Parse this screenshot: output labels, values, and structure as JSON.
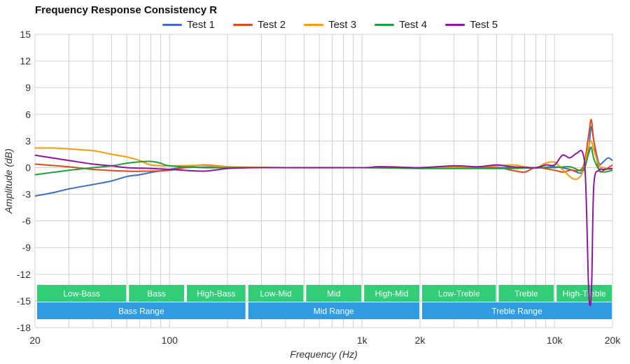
{
  "chart_data": {
    "type": "line",
    "title": "Frequency Response Consistency R",
    "xlabel": "Frequency (Hz)",
    "ylabel": "Amplitude (dB)",
    "xscale": "log",
    "xlim": [
      20,
      20000
    ],
    "ylim": [
      -18,
      15
    ],
    "grid": true,
    "legend_position": "top-center",
    "x_ticks": [
      {
        "value": 20,
        "label": "20"
      },
      {
        "value": 100,
        "label": "100"
      },
      {
        "value": 1000,
        "label": "1k"
      },
      {
        "value": 2000,
        "label": "2k"
      },
      {
        "value": 10000,
        "label": "10k"
      },
      {
        "value": 20000,
        "label": "20k"
      }
    ],
    "y_ticks": [
      {
        "value": 15,
        "label": "15"
      },
      {
        "value": 12,
        "label": "12"
      },
      {
        "value": 9,
        "label": "9"
      },
      {
        "value": 6,
        "label": "6"
      },
      {
        "value": 3,
        "label": "3"
      },
      {
        "value": 0,
        "label": "0"
      },
      {
        "value": -3,
        "label": "-3"
      },
      {
        "value": -6,
        "label": "-6"
      },
      {
        "value": -9,
        "label": "-9"
      },
      {
        "value": -12,
        "label": "-12"
      },
      {
        "value": -15,
        "label": "-15"
      },
      {
        "value": -18,
        "label": "-18"
      }
    ],
    "bands_upper": [
      {
        "label": "Low-Bass",
        "from": 20,
        "to": 60
      },
      {
        "label": "Bass",
        "from": 60,
        "to": 120
      },
      {
        "label": "High-Bass",
        "from": 120,
        "to": 250
      },
      {
        "label": "Low-Mid",
        "from": 250,
        "to": 500
      },
      {
        "label": "Mid",
        "from": 500,
        "to": 1000
      },
      {
        "label": "High-Mid",
        "from": 1000,
        "to": 2000
      },
      {
        "label": "Low-Treble",
        "from": 2000,
        "to": 5000
      },
      {
        "label": "Treble",
        "from": 5000,
        "to": 10000
      },
      {
        "label": "High-Treble",
        "from": 10000,
        "to": 20000
      }
    ],
    "bands_lower": [
      {
        "label": "Bass Range",
        "from": 20,
        "to": 250
      },
      {
        "label": "Mid Range",
        "from": 250,
        "to": 2000
      },
      {
        "label": "Treble Range",
        "from": 2000,
        "to": 20000
      }
    ],
    "band_colors": {
      "upper": "#33cc77",
      "lower": "#2e9be3"
    },
    "series": [
      {
        "name": "Test 1",
        "color": "#3e6ec7",
        "points": [
          [
            20,
            -3.2
          ],
          [
            25,
            -2.8
          ],
          [
            30,
            -2.4
          ],
          [
            40,
            -1.9
          ],
          [
            50,
            -1.5
          ],
          [
            60,
            -1.0
          ],
          [
            70,
            -0.8
          ],
          [
            80,
            -0.55
          ],
          [
            100,
            -0.2
          ],
          [
            120,
            0
          ],
          [
            200,
            0.05
          ],
          [
            400,
            0
          ],
          [
            1000,
            0
          ],
          [
            2000,
            -0.05
          ],
          [
            4000,
            0
          ],
          [
            6000,
            0
          ],
          [
            8000,
            -0.05
          ],
          [
            10000,
            0.1
          ],
          [
            12000,
            -0.2
          ],
          [
            14000,
            -0.5
          ],
          [
            15000,
            2.0
          ],
          [
            15500,
            4.6
          ],
          [
            16000,
            3.0
          ],
          [
            17000,
            0.5
          ],
          [
            18000,
            0.7
          ],
          [
            19000,
            1.1
          ],
          [
            20000,
            0.8
          ]
        ]
      },
      {
        "name": "Test 2",
        "color": "#dd4b1c",
        "points": [
          [
            20,
            0.4
          ],
          [
            30,
            0.1
          ],
          [
            40,
            -0.2
          ],
          [
            60,
            -0.4
          ],
          [
            80,
            -0.4
          ],
          [
            100,
            -0.3
          ],
          [
            120,
            0
          ],
          [
            150,
            0.3
          ],
          [
            200,
            0.1
          ],
          [
            300,
            0
          ],
          [
            1000,
            0
          ],
          [
            1200,
            0.1
          ],
          [
            1400,
            0.1
          ],
          [
            2000,
            0
          ],
          [
            3000,
            0.1
          ],
          [
            5000,
            0
          ],
          [
            6000,
            -0.3
          ],
          [
            7000,
            -0.5
          ],
          [
            8000,
            0
          ],
          [
            10000,
            -0.3
          ],
          [
            11000,
            -0.5
          ],
          [
            12000,
            -0.3
          ],
          [
            14000,
            0
          ],
          [
            15000,
            3.5
          ],
          [
            15500,
            5.4
          ],
          [
            16000,
            3.0
          ],
          [
            17000,
            -0.2
          ],
          [
            18000,
            -0.3
          ],
          [
            20000,
            0.3
          ]
        ]
      },
      {
        "name": "Test 3",
        "color": "#f59e0b",
        "points": [
          [
            20,
            2.2
          ],
          [
            25,
            2.2
          ],
          [
            30,
            2.1
          ],
          [
            40,
            1.9
          ],
          [
            50,
            1.5
          ],
          [
            60,
            1.2
          ],
          [
            70,
            0.8
          ],
          [
            80,
            0.3
          ],
          [
            100,
            0.2
          ],
          [
            150,
            0.25
          ],
          [
            200,
            0.1
          ],
          [
            400,
            0
          ],
          [
            1000,
            0
          ],
          [
            2000,
            0
          ],
          [
            4000,
            0.1
          ],
          [
            6000,
            0.3
          ],
          [
            7000,
            0.1
          ],
          [
            8000,
            0
          ],
          [
            9000,
            0.5
          ],
          [
            10000,
            0.6
          ],
          [
            11000,
            -0.2
          ],
          [
            12000,
            -1.0
          ],
          [
            13000,
            -1.3
          ],
          [
            14000,
            -0.5
          ],
          [
            15000,
            2.3
          ],
          [
            15500,
            3.0
          ],
          [
            16000,
            2.0
          ],
          [
            17000,
            0.3
          ],
          [
            18000,
            0
          ],
          [
            20000,
            -0.2
          ]
        ]
      },
      {
        "name": "Test 4",
        "color": "#20a03a",
        "points": [
          [
            20,
            -0.8
          ],
          [
            30,
            -0.3
          ],
          [
            40,
            0
          ],
          [
            50,
            0.2
          ],
          [
            60,
            0.5
          ],
          [
            70,
            0.65
          ],
          [
            80,
            0.7
          ],
          [
            90,
            0.5
          ],
          [
            100,
            0.2
          ],
          [
            150,
            0
          ],
          [
            200,
            0
          ],
          [
            400,
            0
          ],
          [
            1000,
            0
          ],
          [
            2000,
            -0.1
          ],
          [
            4000,
            -0.1
          ],
          [
            6000,
            -0.1
          ],
          [
            8000,
            0
          ],
          [
            10000,
            0
          ],
          [
            12000,
            0.1
          ],
          [
            14000,
            -0.3
          ],
          [
            15000,
            1.5
          ],
          [
            15500,
            2.3
          ],
          [
            16000,
            1.0
          ],
          [
            17000,
            -0.2
          ],
          [
            18000,
            -0.5
          ],
          [
            20000,
            -0.3
          ]
        ]
      },
      {
        "name": "Test 5",
        "color": "#8d189e",
        "points": [
          [
            20,
            1.4
          ],
          [
            30,
            0.8
          ],
          [
            40,
            0.4
          ],
          [
            50,
            0.2
          ],
          [
            60,
            0
          ],
          [
            80,
            -0.1
          ],
          [
            100,
            -0.2
          ],
          [
            150,
            -0.4
          ],
          [
            200,
            -0.1
          ],
          [
            300,
            0
          ],
          [
            1000,
            0
          ],
          [
            1200,
            0.1
          ],
          [
            2000,
            0
          ],
          [
            3000,
            0.2
          ],
          [
            4000,
            0.1
          ],
          [
            5000,
            0.3
          ],
          [
            6000,
            0.1
          ],
          [
            8000,
            0
          ],
          [
            9000,
            0.3
          ],
          [
            10000,
            0.3
          ],
          [
            11000,
            1.4
          ],
          [
            12000,
            1.1
          ],
          [
            13000,
            1.6
          ],
          [
            14000,
            1.7
          ],
          [
            14500,
            -1.5
          ],
          [
            15000,
            -13
          ],
          [
            15300,
            -15.5
          ],
          [
            15600,
            -13
          ],
          [
            16000,
            -2.0
          ],
          [
            17000,
            -0.3
          ],
          [
            18000,
            -0.2
          ],
          [
            20000,
            -0.1
          ]
        ]
      }
    ]
  }
}
